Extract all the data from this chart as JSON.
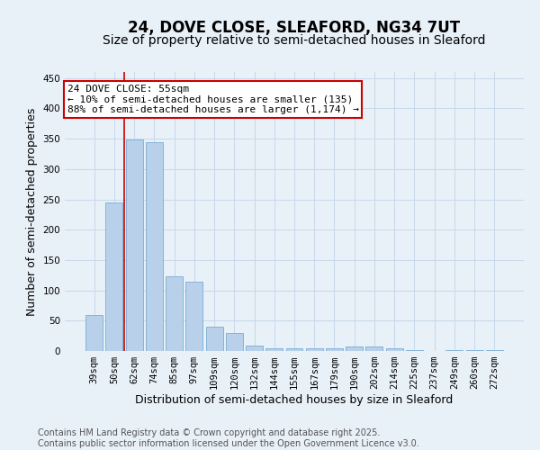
{
  "title": "24, DOVE CLOSE, SLEAFORD, NG34 7UT",
  "subtitle": "Size of property relative to semi-detached houses in Sleaford",
  "xlabel": "Distribution of semi-detached houses by size in Sleaford",
  "ylabel": "Number of semi-detached properties",
  "categories": [
    "39sqm",
    "50sqm",
    "62sqm",
    "74sqm",
    "85sqm",
    "97sqm",
    "109sqm",
    "120sqm",
    "132sqm",
    "144sqm",
    "155sqm",
    "167sqm",
    "179sqm",
    "190sqm",
    "202sqm",
    "214sqm",
    "225sqm",
    "237sqm",
    "249sqm",
    "260sqm",
    "272sqm"
  ],
  "values": [
    60,
    245,
    349,
    344,
    123,
    115,
    40,
    30,
    9,
    5,
    5,
    5,
    5,
    7,
    7,
    5,
    2,
    0,
    1,
    1,
    2
  ],
  "bar_color": "#b8d0ea",
  "bar_edge_color": "#7aadd4",
  "grid_color": "#c8d8ea",
  "background_color": "#e8f0f8",
  "vline_x": 1.5,
  "vline_color": "#cc0000",
  "annotation_text": "24 DOVE CLOSE: 55sqm\n← 10% of semi-detached houses are smaller (135)\n88% of semi-detached houses are larger (1,174) →",
  "annotation_box_color": "#ffffff",
  "annotation_box_edge": "#cc0000",
  "ylim": [
    0,
    460
  ],
  "yticks": [
    0,
    50,
    100,
    150,
    200,
    250,
    300,
    350,
    400,
    450
  ],
  "footer_text": "Contains HM Land Registry data © Crown copyright and database right 2025.\nContains public sector information licensed under the Open Government Licence v3.0.",
  "title_fontsize": 12,
  "subtitle_fontsize": 10,
  "xlabel_fontsize": 9,
  "ylabel_fontsize": 9,
  "tick_fontsize": 7.5,
  "annotation_fontsize": 8,
  "footer_fontsize": 7
}
